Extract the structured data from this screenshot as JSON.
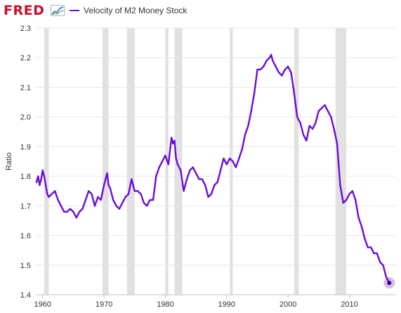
{
  "header": {
    "logo_text": "FRED",
    "logo_icon": "line-graph-icon"
  },
  "legend": {
    "label": "Velocity of M2 Money Stock",
    "color": "#6a0dd8"
  },
  "chart_data": {
    "type": "line",
    "title": "",
    "xlabel": "",
    "ylabel": "Ratio",
    "xlim": [
      1959.0,
      2017.5
    ],
    "ylim": [
      1.4,
      2.3
    ],
    "grid": "horizontal",
    "legend_position": "top-left",
    "line_color": "#6a0dd8",
    "recession_color": "#e1e1e1",
    "x_ticks": [
      "1960",
      "1970",
      "1980",
      "1990",
      "2000",
      "2010"
    ],
    "y_ticks": [
      "1.4",
      "1.5",
      "1.6",
      "1.7",
      "1.8",
      "1.9",
      "2.0",
      "2.1",
      "2.2",
      "2.3"
    ],
    "recessions": [
      [
        1960.25,
        1961.0
      ],
      [
        1969.75,
        1970.75
      ],
      [
        1973.75,
        1975.0
      ],
      [
        1980.0,
        1980.5
      ],
      [
        1981.5,
        1982.75
      ],
      [
        1990.5,
        1991.0
      ],
      [
        2001.0,
        2001.75
      ],
      [
        2007.75,
        2009.5
      ]
    ],
    "series": [
      {
        "name": "Velocity of M2 Money Stock",
        "x": [
          1959.0,
          1959.25,
          1959.5,
          1959.75,
          1960.0,
          1960.25,
          1960.5,
          1960.75,
          1961.0,
          1961.5,
          1962.0,
          1962.5,
          1963.0,
          1963.5,
          1964.0,
          1964.5,
          1965.0,
          1965.5,
          1966.0,
          1966.5,
          1967.0,
          1967.5,
          1968.0,
          1968.5,
          1969.0,
          1969.5,
          1970.0,
          1970.5,
          1970.75,
          1971.0,
          1971.5,
          1972.0,
          1972.5,
          1973.0,
          1973.5,
          1974.0,
          1974.5,
          1975.0,
          1975.5,
          1976.0,
          1976.5,
          1977.0,
          1977.5,
          1978.0,
          1978.5,
          1979.0,
          1979.5,
          1980.0,
          1980.5,
          1981.0,
          1981.25,
          1981.5,
          1981.75,
          1982.0,
          1982.5,
          1983.0,
          1983.5,
          1984.0,
          1984.5,
          1985.0,
          1985.5,
          1986.0,
          1986.5,
          1987.0,
          1987.5,
          1988.0,
          1988.5,
          1989.0,
          1989.5,
          1990.0,
          1990.5,
          1991.0,
          1991.5,
          1992.0,
          1992.5,
          1993.0,
          1993.5,
          1994.0,
          1994.5,
          1995.0,
          1995.5,
          1996.0,
          1996.5,
          1997.0,
          1997.25,
          1997.5,
          1998.0,
          1998.5,
          1999.0,
          1999.5,
          2000.0,
          2000.5,
          2001.0,
          2001.5,
          2002.0,
          2002.5,
          2003.0,
          2003.5,
          2004.0,
          2004.5,
          2005.0,
          2005.5,
          2006.0,
          2006.5,
          2007.0,
          2007.5,
          2008.0,
          2008.5,
          2009.0,
          2009.5,
          2010.0,
          2010.5,
          2011.0,
          2011.5,
          2012.0,
          2012.5,
          2013.0,
          2013.5,
          2014.0,
          2014.5,
          2015.0,
          2015.5,
          2016.0,
          2016.5
        ],
        "y": [
          1.78,
          1.8,
          1.77,
          1.79,
          1.82,
          1.8,
          1.77,
          1.74,
          1.73,
          1.74,
          1.75,
          1.72,
          1.7,
          1.68,
          1.68,
          1.69,
          1.68,
          1.66,
          1.68,
          1.69,
          1.72,
          1.75,
          1.74,
          1.7,
          1.73,
          1.72,
          1.77,
          1.81,
          1.77,
          1.76,
          1.72,
          1.7,
          1.69,
          1.71,
          1.73,
          1.74,
          1.79,
          1.75,
          1.75,
          1.74,
          1.71,
          1.7,
          1.72,
          1.72,
          1.8,
          1.83,
          1.85,
          1.87,
          1.84,
          1.93,
          1.91,
          1.92,
          1.86,
          1.84,
          1.82,
          1.75,
          1.79,
          1.82,
          1.83,
          1.81,
          1.79,
          1.79,
          1.77,
          1.73,
          1.74,
          1.77,
          1.78,
          1.82,
          1.86,
          1.84,
          1.86,
          1.85,
          1.83,
          1.86,
          1.89,
          1.94,
          1.97,
          2.02,
          2.08,
          2.16,
          2.16,
          2.17,
          2.19,
          2.2,
          2.21,
          2.19,
          2.17,
          2.15,
          2.14,
          2.16,
          2.17,
          2.15,
          2.08,
          2.0,
          1.98,
          1.94,
          1.92,
          1.97,
          1.96,
          1.98,
          2.02,
          2.03,
          2.04,
          2.02,
          2.0,
          1.96,
          1.91,
          1.77,
          1.71,
          1.72,
          1.74,
          1.75,
          1.72,
          1.66,
          1.63,
          1.59,
          1.56,
          1.56,
          1.54,
          1.54,
          1.51,
          1.5,
          1.46,
          1.44
        ],
        "color": "#6a0dd8"
      }
    ]
  }
}
